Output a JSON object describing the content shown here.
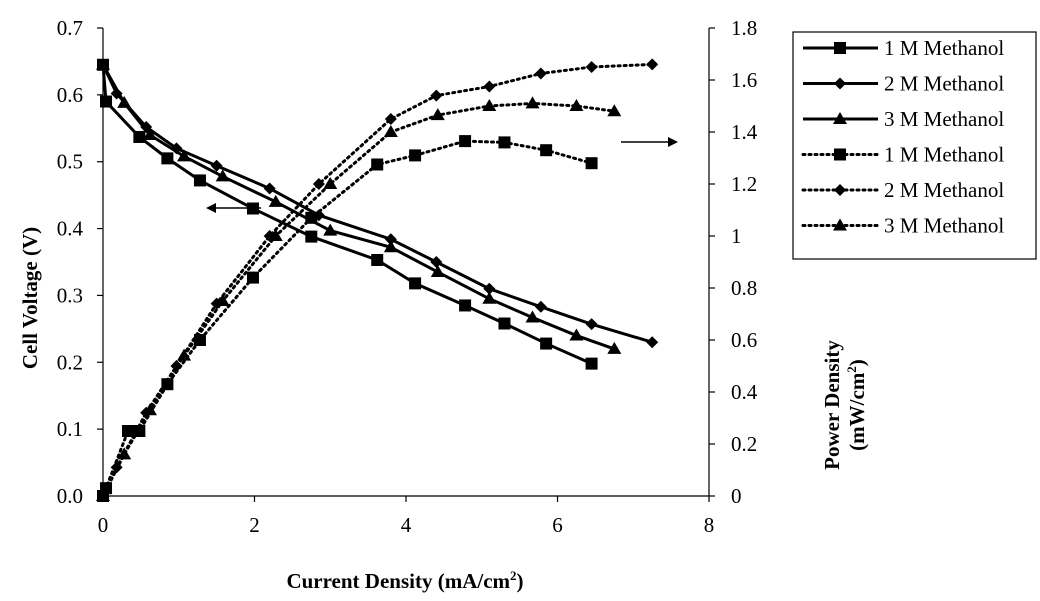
{
  "chart_data": {
    "type": "line",
    "xlabel": "Current Density (mA/cm",
    "xlabel_sup": "2",
    "xlabel_tail": ")",
    "ylabel": "Cell Voltage (V)",
    "y2label_line1": "Power Density",
    "y2label_line2": "(mW/cm",
    "y2label_sup": "2",
    "y2label_tail": ")",
    "xlim": [
      0,
      8
    ],
    "ylim": [
      0,
      0.7
    ],
    "y2lim": [
      0,
      1.8
    ],
    "xticks": [
      "0",
      "2",
      "4",
      "6",
      "8"
    ],
    "yticks": [
      "0.0",
      "0.1",
      "0.2",
      "0.3",
      "0.4",
      "0.5",
      "0.6",
      "0.7"
    ],
    "y2ticks": [
      "0",
      "0.2",
      "0.4",
      "0.6",
      "0.8",
      "1",
      "1.2",
      "1.4",
      "1.6",
      "1.8"
    ],
    "grid": false,
    "legend_position": "top-right, outside plot",
    "series": [
      {
        "name": "1 M Methanol",
        "axis": "left",
        "line": "solid",
        "marker": "square",
        "x": [
          0,
          0.04,
          0.48,
          0.85,
          1.28,
          1.98,
          2.75,
          3.62,
          4.12,
          4.78,
          5.3,
          5.85,
          6.45
        ],
        "y": [
          0.645,
          0.59,
          0.537,
          0.505,
          0.472,
          0.43,
          0.388,
          0.353,
          0.318,
          0.285,
          0.258,
          0.228,
          0.198
        ]
      },
      {
        "name": "2 M Methanol",
        "axis": "left",
        "line": "solid",
        "marker": "diamond",
        "x": [
          0,
          0.18,
          0.57,
          0.97,
          1.5,
          2.2,
          2.85,
          3.8,
          4.4,
          5.1,
          5.78,
          6.45,
          7.25
        ],
        "y": [
          0.645,
          0.602,
          0.552,
          0.52,
          0.494,
          0.46,
          0.42,
          0.384,
          0.35,
          0.31,
          0.283,
          0.257,
          0.23
        ]
      },
      {
        "name": "3 M Methanol",
        "axis": "left",
        "line": "solid",
        "marker": "triangle",
        "x": [
          0,
          0.28,
          0.62,
          1.07,
          1.58,
          2.28,
          3.0,
          3.8,
          4.42,
          5.1,
          5.67,
          6.25,
          6.75
        ],
        "y": [
          0.645,
          0.588,
          0.54,
          0.508,
          0.478,
          0.44,
          0.397,
          0.372,
          0.335,
          0.295,
          0.267,
          0.24,
          0.22
        ]
      },
      {
        "name": "1 M Methanol",
        "axis": "right",
        "line": "dotted",
        "marker": "square",
        "x": [
          0,
          0.04,
          0.33,
          0.48,
          0.85,
          1.28,
          1.98,
          2.75,
          3.62,
          4.12,
          4.78,
          5.3,
          5.85,
          6.45
        ],
        "y": [
          0,
          0.03,
          0.25,
          0.25,
          0.43,
          0.6,
          0.84,
          1.07,
          1.275,
          1.31,
          1.365,
          1.36,
          1.33,
          1.28
        ]
      },
      {
        "name": "2 M Methanol",
        "axis": "right",
        "line": "dotted",
        "marker": "diamond",
        "x": [
          0,
          0.18,
          0.57,
          0.97,
          1.5,
          2.2,
          2.85,
          3.8,
          4.4,
          5.1,
          5.78,
          6.45,
          7.25
        ],
        "y": [
          0,
          0.11,
          0.32,
          0.5,
          0.74,
          1.0,
          1.2,
          1.45,
          1.54,
          1.575,
          1.625,
          1.65,
          1.66
        ]
      },
      {
        "name": "3 M Methanol",
        "axis": "right",
        "line": "dotted",
        "marker": "triangle",
        "x": [
          0,
          0.28,
          0.62,
          1.07,
          1.58,
          2.28,
          3.0,
          3.8,
          4.42,
          5.1,
          5.67,
          6.25,
          6.75
        ],
        "y": [
          0,
          0.16,
          0.33,
          0.54,
          0.75,
          1.0,
          1.2,
          1.4,
          1.465,
          1.5,
          1.51,
          1.5,
          1.48
        ]
      }
    ]
  }
}
